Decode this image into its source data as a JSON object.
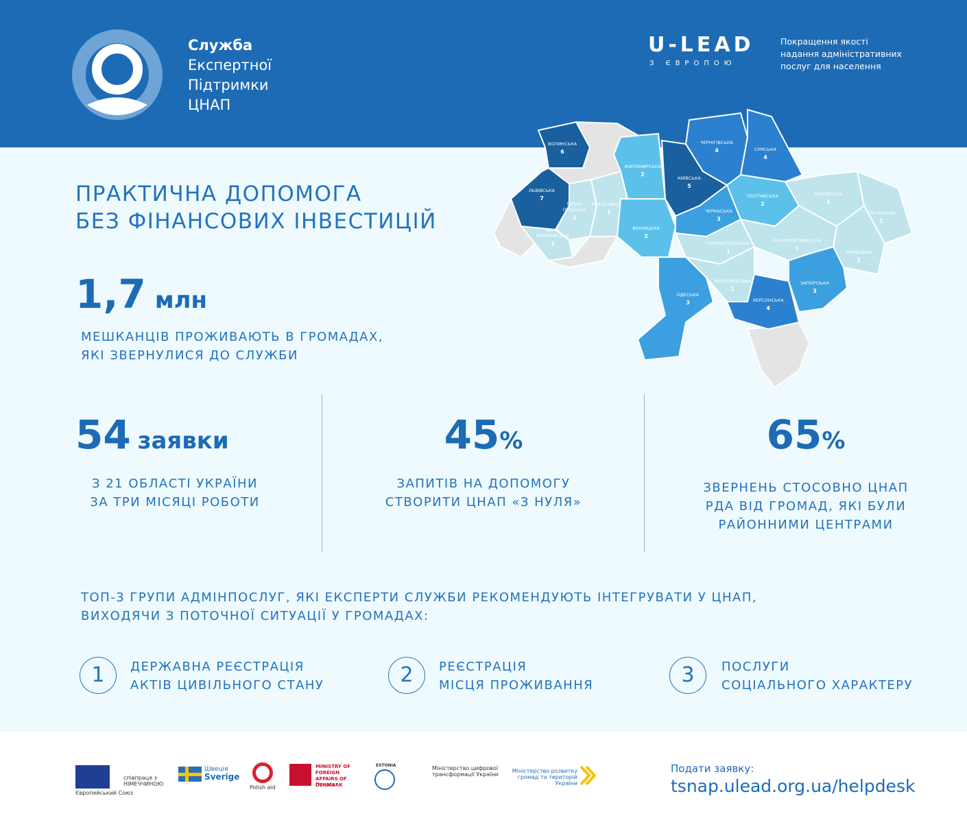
{
  "header": {
    "title_lines": [
      "Служба",
      "Експертної",
      "Підтримки",
      "ЦНАП"
    ],
    "ulead": "U-LEAD",
    "ulead_sub": "З ЄВРОПОЮ",
    "tagline_lines": [
      "Покращення якості",
      "надання адміністративних",
      "послуг для населення"
    ]
  },
  "headline_lines": [
    "ПРАКТИЧНА ДОПОМОГА",
    "БЕЗ ФІНАНСОВИХ ІНВЕСТИЦІЙ"
  ],
  "residents": {
    "value": "1,7",
    "unit": "млн",
    "lines": [
      "МЕШКАНЦІВ ПРОЖИВАЮТЬ В ГРОМАДАХ,",
      "ЯКІ ЗВЕРНУЛИСЯ ДО СЛУЖБИ"
    ]
  },
  "cards": [
    {
      "value": "54",
      "unit": "заявки",
      "lines": [
        "З 21 ОБЛАСТІ УКРАЇНИ",
        "ЗА ТРИ МІСЯЦІ РОБОТИ"
      ]
    },
    {
      "value": "45",
      "unit": "%",
      "lines": [
        "ЗАПИТІВ НА ДОПОМОГУ",
        "СТВОРИТИ ЦНАП «З НУЛЯ»"
      ]
    },
    {
      "value": "65",
      "unit": "%",
      "lines": [
        "ЗВЕРНЕНЬ СТОСОВНО ЦНАП",
        "РДА ВІД ГРОМАД, ЯКІ БУЛИ",
        "РАЙОННИМИ ЦЕНТРАМИ"
      ]
    }
  ],
  "top3": {
    "intro_lines": [
      "ТОП-3 ГРУПИ АДМІНПОСЛУГ, ЯКІ ЕКСПЕРТИ СЛУЖБИ РЕКОМЕНДУЮТЬ ІНТЕГРУВАТИ У ЦНАП,",
      "ВИХОДЯЧИ З ПОТОЧНОЇ СИТУАЦІЇ У ГРОМАДАХ:"
    ],
    "items": [
      {
        "num": "1",
        "lines": [
          "ДЕРЖАВНА РЕЄСТРАЦІЯ",
          "АКТІВ ЦИВІЛЬНОГО СТАНУ"
        ]
      },
      {
        "num": "2",
        "lines": [
          "РЕЄСТРАЦІЯ",
          "МІСЦЯ ПРОЖИВАННЯ"
        ]
      },
      {
        "num": "3",
        "lines": [
          "ПОСЛУГИ",
          "СОЦІАЛЬНОГО ХАРАКТЕРУ"
        ]
      }
    ]
  },
  "map": {
    "color_scale": {
      "1": "#bfe4ec",
      "2": "#5cc1ea",
      "3": "#3b9fe0",
      "4": "#2b80cf",
      "5": "#1a5f9e",
      "6": "#1a5f9e",
      "7": "#1a5f9e"
    },
    "regions": [
      {
        "name": "ВОЛИНСЬКА",
        "count": 6
      },
      {
        "name": "ЛЬВІВСЬКА",
        "count": 7
      },
      {
        "name": [
          "ТЕРНО-",
          "ПІЛЬСЬКА"
        ],
        "count": 1
      },
      {
        "name": [
          "ІВАНО-",
          "ФРАНКІВСЬКА"
        ],
        "count": 1
      },
      {
        "name": "ХМЕЛЬНИЦЬКА",
        "count": 1
      },
      {
        "name": "ЖИТОМИРСЬКА",
        "count": 2
      },
      {
        "name": "ВІННИЦЬКА",
        "count": 2
      },
      {
        "name": "КИЇВСЬКА",
        "count": 5
      },
      {
        "name": "ЧЕРНІГІВСЬКА",
        "count": 4
      },
      {
        "name": "СУМСЬКА",
        "count": 4
      },
      {
        "name": "ПОЛТАВСЬКА",
        "count": 2
      },
      {
        "name": "ЧЕРКАСЬКА",
        "count": 3
      },
      {
        "name": "ХАРКІВСЬКА",
        "count": 1
      },
      {
        "name": "ЛУГАНСЬКА",
        "count": 1
      },
      {
        "name": "ДОНЕЦЬКА",
        "count": 1
      },
      {
        "name": "ДНІПРОПЕТРОВСЬКА",
        "count": 1
      },
      {
        "name": "КІРОВОГРАДСЬКА",
        "count": 1
      },
      {
        "name": "МИКОЛАЇВСЬКА",
        "count": 1
      },
      {
        "name": "ОДЕСЬКА",
        "count": 3
      },
      {
        "name": "ХЕРСОНСЬКА",
        "count": 4
      },
      {
        "name": "ЗАПОРІЗЬКА",
        "count": 3
      }
    ]
  },
  "footer": {
    "logos": [
      "Європейський Союз",
      "співпраця з НІМЕЧЧИНОЮ",
      "Швеція",
      "Sverige",
      "Polish aid",
      "MINISTRY OF FOREIGN AFFAIRS OF DENMARK",
      "Danida",
      "ESTONIA",
      "Міністерство цифрової трансформації України",
      "Міністерство розвитку громад та територій України"
    ],
    "apply": "Подати заявку:",
    "url": "tsnap.ulead.org.ua/helpdesk"
  }
}
